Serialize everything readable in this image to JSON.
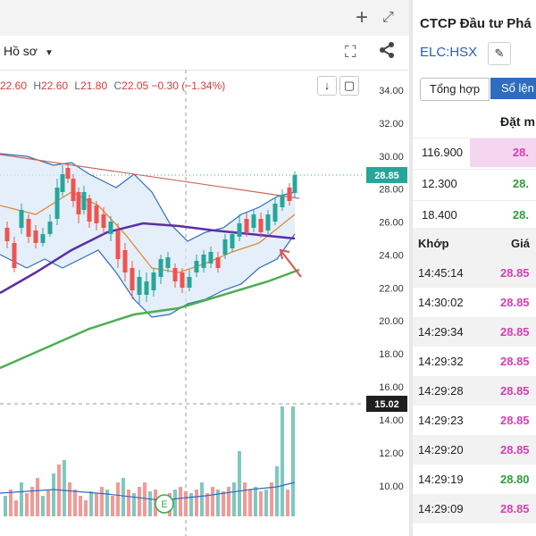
{
  "chart_panel": {
    "toolbar": {
      "profile_label": "Hồ sơ",
      "profile_chevron": "chevron-down-icon"
    },
    "ohlc": {
      "o": "22.60",
      "h_label": "H",
      "h": "22.60",
      "l_label": "L",
      "l": "21.80",
      "c_label": "C",
      "c": "22.05",
      "change": "−0.30",
      "change_pct": "(−1.34%)"
    },
    "price_axis_labels": [
      "34.00",
      "32.00",
      "30.00",
      "28.00",
      "26.00",
      "24.00",
      "22.00",
      "20.00",
      "18.00",
      "16.00"
    ],
    "volume_axis_labels": [
      "14.00",
      "12.00",
      "10.00"
    ],
    "last_price_badge": "28.85",
    "volume_badge": "15.02",
    "earnings_marker": "E",
    "colors": {
      "up": "#26a69a",
      "down": "#ef5350",
      "ma_fast": "#e08a3c",
      "ma_mid": "#5b2ea6",
      "ma_slow": "#4caf50",
      "band": "#2f6cc0",
      "trend": "#c86a5a",
      "arrow": "#d9534f"
    }
  },
  "info_panel": {
    "company_name": "CTCP Đầu tư Phá",
    "ticker": "ELC:HSX",
    "tabs": [
      "Tổng hợp",
      "Sổ lện"
    ],
    "orders_header": "Đặt m",
    "orders": [
      {
        "qty": "116.900",
        "price": "28.",
        "color": "#d43fb5",
        "bg": "#f5d6f1"
      },
      {
        "qty": "12.300",
        "price": "28.",
        "color": "#2e9d3a",
        "bg": "#ffffff"
      },
      {
        "qty": "18.400",
        "price": "28.",
        "color": "#2e9d3a",
        "bg": "#ffffff"
      }
    ],
    "trades_header": {
      "time": "Khớp",
      "price": "Giá"
    },
    "trades": [
      {
        "time": "14:45:14",
        "price": "28.85",
        "color": "#d43fb5"
      },
      {
        "time": "14:30:02",
        "price": "28.85",
        "color": "#d43fb5"
      },
      {
        "time": "14:29:34",
        "price": "28.85",
        "color": "#d43fb5"
      },
      {
        "time": "14:29:32",
        "price": "28.85",
        "color": "#d43fb5"
      },
      {
        "time": "14:29:28",
        "price": "28.85",
        "color": "#d43fb5"
      },
      {
        "time": "14:29:23",
        "price": "28.85",
        "color": "#d43fb5"
      },
      {
        "time": "14:29:20",
        "price": "28.85",
        "color": "#d43fb5"
      },
      {
        "time": "14:29:19",
        "price": "28.80",
        "color": "#2e9d3a"
      },
      {
        "time": "14:29:09",
        "price": "28.85",
        "color": "#d43fb5"
      }
    ]
  }
}
